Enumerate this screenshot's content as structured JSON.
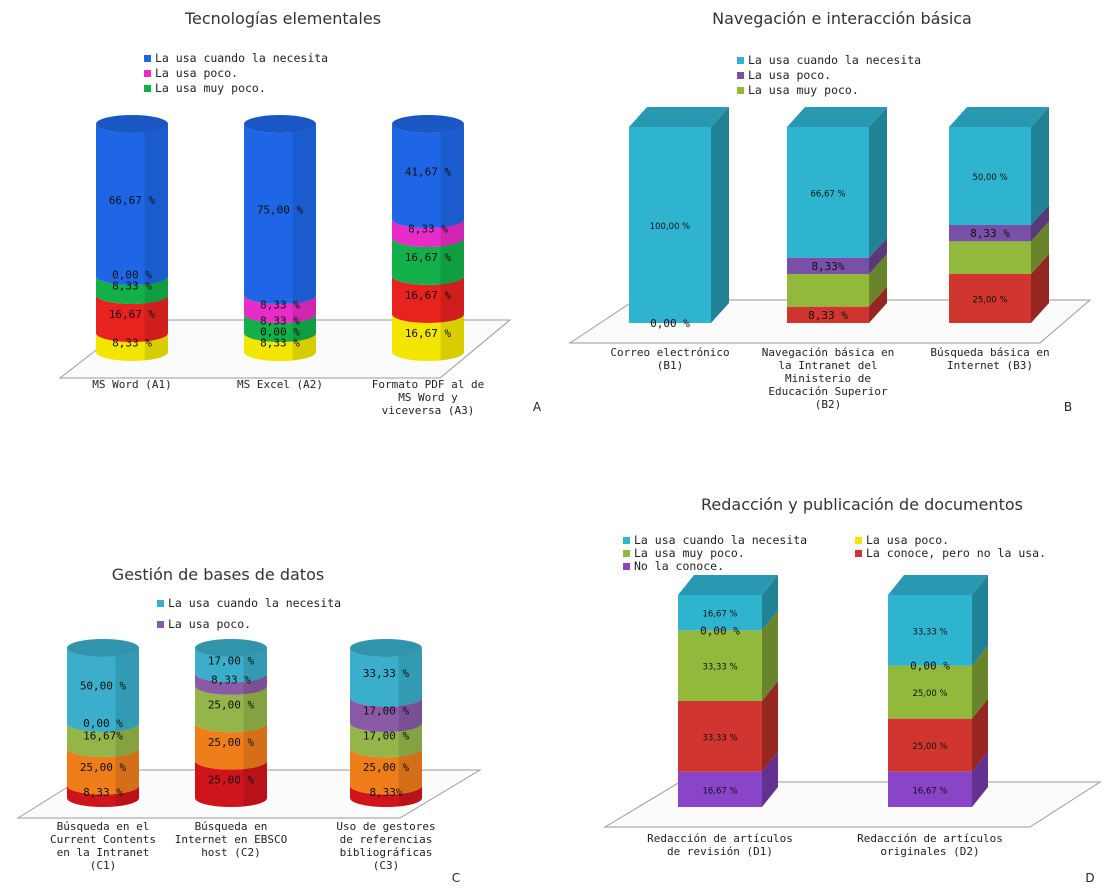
{
  "chart_data": [
    {
      "type": "bar",
      "panel": "A",
      "title": "Tecnologías elementales",
      "categories": [
        "MS Word (A1)",
        "MS Excel (A2)",
        "Formato PDF al de MS Word y viceversa (A3)"
      ],
      "series": [
        {
          "name": "La usa cuando la necesita",
          "color": "#1e66e6",
          "values": [
            66.67,
            75.0,
            41.67
          ],
          "labels": [
            "66,67 %",
            "75,00 %",
            "41,67 %"
          ]
        },
        {
          "name": "La usa poco.",
          "color": "#e82cc8",
          "values": [
            0.0,
            8.33,
            8.33
          ],
          "labels": [
            "0,00 %",
            "8,33 %",
            "8,33 %"
          ]
        },
        {
          "name": "La usa muy poco.",
          "color": "#13b04a",
          "values": [
            8.33,
            8.33,
            16.67
          ],
          "labels": [
            "8,33 %",
            "8,33 %",
            "16,67 %"
          ]
        },
        {
          "name": "",
          "color": "#e8231f",
          "values": [
            16.67,
            0.0,
            16.67
          ],
          "labels": [
            "16,67 %",
            "0,00 %",
            "16,67 %"
          ]
        },
        {
          "name": "",
          "color": "#f2e600",
          "values": [
            8.33,
            8.33,
            16.67
          ],
          "labels": [
            "8,33 %",
            "8,33 %",
            "16,67 %"
          ]
        }
      ]
    },
    {
      "type": "bar",
      "panel": "B",
      "title": "Navegación e interacción básica",
      "categories": [
        "Correo electrónico (B1)",
        "Navegación básica en la Intranet del Ministerio de Educación Superior (B2)",
        "Búsqueda básica en Internet (B3)"
      ],
      "series": [
        {
          "name": "La usa cuando la necesita",
          "color": "#2fb4cf",
          "values": [
            100.0,
            66.67,
            50.0
          ],
          "labels": [
            "100,00 %",
            "66,67 %",
            "50,00 %"
          ]
        },
        {
          "name": "La usa poco.",
          "color": "#7a4fa8",
          "values": [
            0.0,
            8.33,
            8.33
          ],
          "labels": [
            "0,00 %",
            "8,33%",
            "8,33 %"
          ]
        },
        {
          "name": "La usa muy poco.",
          "color": "#92b83c",
          "values": [
            0.0,
            16.67,
            16.67
          ],
          "labels": [
            "",
            "",
            ""
          ]
        },
        {
          "name": "",
          "color": "#d0352f",
          "values": [
            0.0,
            8.33,
            25.0
          ],
          "labels": [
            "",
            "8,33 %",
            "25,00 %"
          ]
        }
      ]
    },
    {
      "type": "bar",
      "panel": "C",
      "title": "Gestión de bases de datos",
      "categories": [
        "Búsqueda en el Current Contents en la Intranet (C1)",
        "Búsqueda en Internet en EBSCO host (C2)",
        "Uso de gestores de referencias bibliográficas (C3)"
      ],
      "series": [
        {
          "name": "La usa cuando la necesita",
          "color": "#3aaecb",
          "values": [
            50.0,
            17.0,
            33.33
          ],
          "labels": [
            "50,00 %",
            "17,00 %",
            "33,33 %"
          ]
        },
        {
          "name": "La usa poco.",
          "color": "#8a5aa6",
          "values": [
            0.0,
            8.33,
            17.0
          ],
          "labels": [
            "0,00 %",
            "8,33 %",
            "17,00 %"
          ]
        },
        {
          "name": "",
          "color": "#94b54a",
          "values": [
            16.67,
            25.0,
            17.0
          ],
          "labels": [
            "16,67%",
            "25,00 %",
            "17,00 %"
          ]
        },
        {
          "name": "",
          "color": "#ef7d1a",
          "values": [
            25.0,
            25.0,
            25.0
          ],
          "labels": [
            "25,00 %",
            "25,00 %",
            "25,00 %"
          ]
        },
        {
          "name": "",
          "color": "#d0141b",
          "values": [
            8.33,
            25.0,
            8.33
          ],
          "labels": [
            "8,33 %",
            "25,00 %",
            "8,33%"
          ]
        }
      ]
    },
    {
      "type": "bar",
      "panel": "D",
      "title": "Redacción y publicación de documentos",
      "categories": [
        "Redacción de artículos de revisión (D1)",
        "Redacción de artículos originales (D2)"
      ],
      "series": [
        {
          "name": "La usa cuando la necesita",
          "color": "#2fb4cf",
          "values": [
            16.67,
            33.33
          ],
          "labels": [
            "16,67 %",
            "33,33 %"
          ]
        },
        {
          "name": "La usa poco.",
          "color": "#f2e600",
          "values": [
            0.0,
            0.0
          ],
          "labels": [
            "0,00 %",
            "0,00 %"
          ]
        },
        {
          "name": "La usa muy poco.",
          "color": "#92b83c",
          "values": [
            33.33,
            25.0
          ],
          "labels": [
            "33,33 %",
            "25,00 %"
          ]
        },
        {
          "name": "La conoce, pero no la usa.",
          "color": "#d0352f",
          "values": [
            33.33,
            25.0
          ],
          "labels": [
            "33,33 %",
            "25,00 %"
          ]
        },
        {
          "name": "No la conoce.",
          "color": "#8a44c8",
          "values": [
            16.67,
            16.67
          ],
          "labels": [
            "16,67 %",
            "16,67 %"
          ]
        }
      ]
    }
  ]
}
